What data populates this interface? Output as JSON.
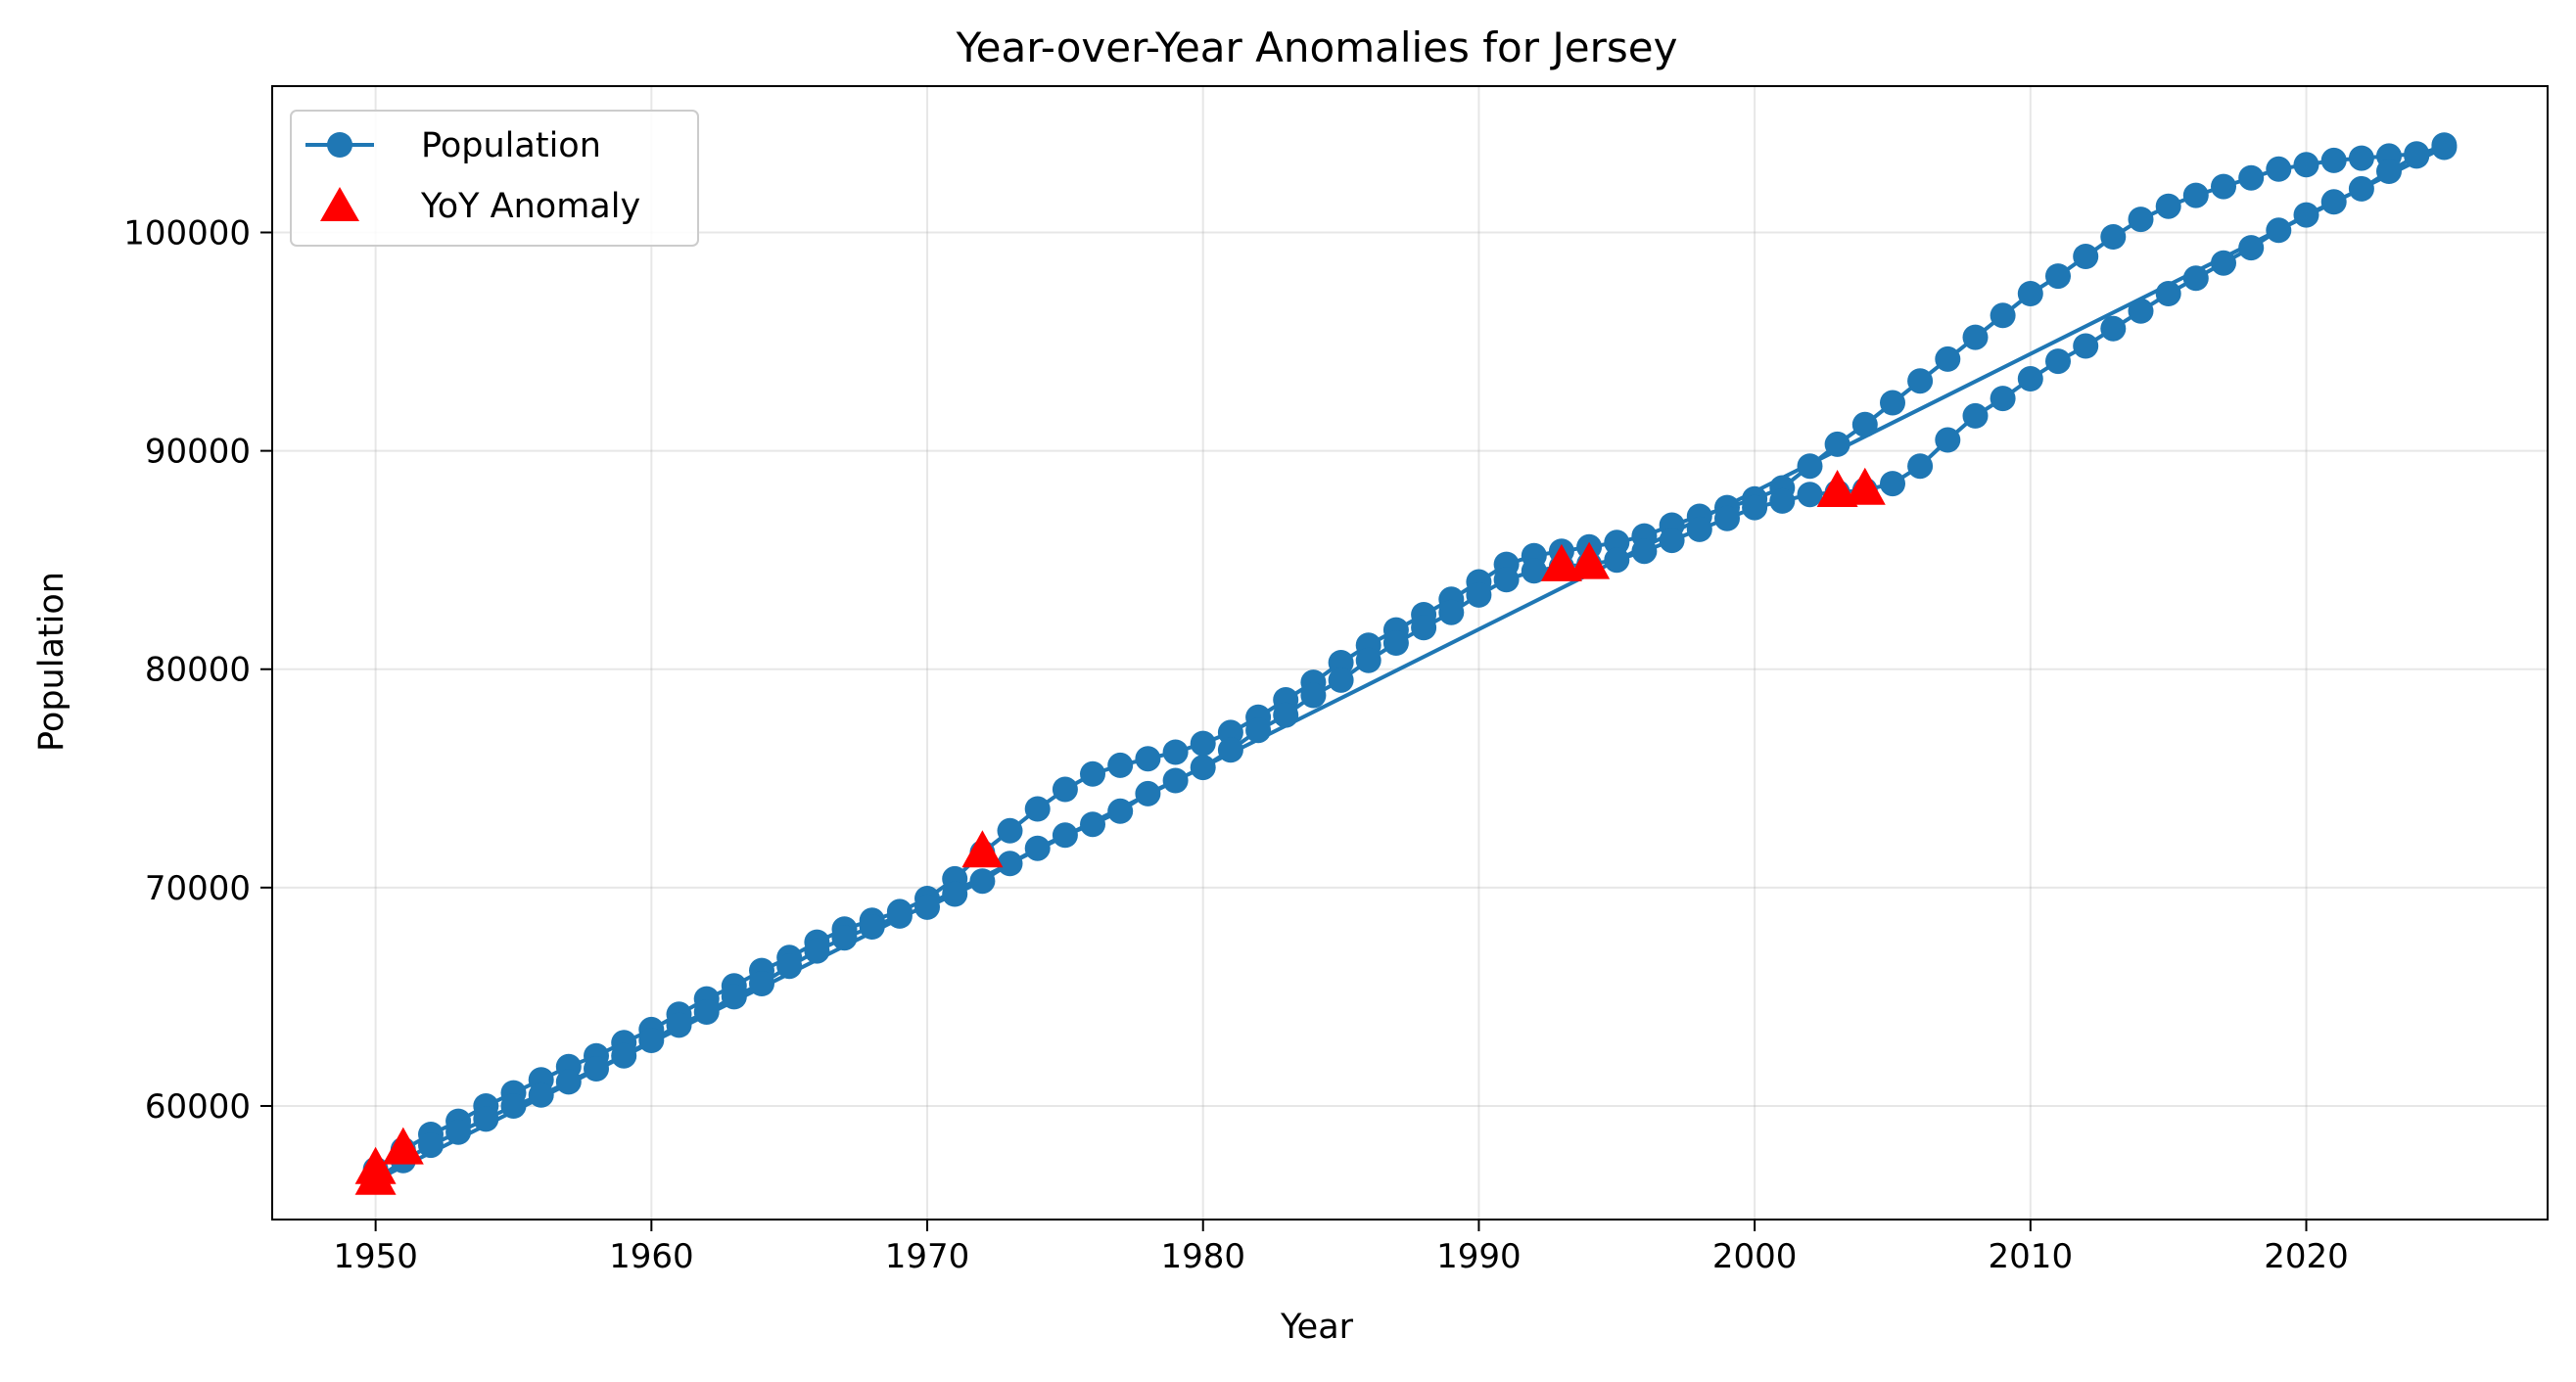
{
  "chart_data": {
    "type": "line",
    "title": "Year-over-Year Anomalies for Jersey",
    "xlabel": "Year",
    "ylabel": "Population",
    "xlim": [
      1946.25,
      2028.75
    ],
    "ylim": [
      54800,
      106700
    ],
    "xticks": [
      1950,
      1960,
      1970,
      1980,
      1990,
      2000,
      2010,
      2020
    ],
    "yticks": [
      60000,
      70000,
      80000,
      90000,
      100000
    ],
    "grid": true,
    "legend_position": "upper-left",
    "colors": {
      "series": "#1f77b4",
      "anomaly": "#ff0000"
    },
    "series": [
      {
        "name": "Population",
        "marker": "circle",
        "x": [
          1950,
          1951,
          1952,
          1953,
          1954,
          1955,
          1956,
          1957,
          1958,
          1959,
          1960,
          1961,
          1962,
          1963,
          1964,
          1965,
          1966,
          1967,
          1968,
          1969,
          1970,
          1971,
          1972,
          1973,
          1974,
          1975,
          1976,
          1977,
          1978,
          1979,
          1980,
          1981,
          1982,
          1983,
          1984,
          1985,
          1986,
          1987,
          1988,
          1989,
          1990,
          1991,
          1992,
          1993,
          1994,
          1995,
          1996,
          1997,
          1998,
          1999,
          2000,
          2001,
          2002,
          2003,
          2004,
          2005,
          2006,
          2007,
          2008,
          2009,
          2010,
          2011,
          2012,
          2013,
          2014,
          2015,
          2016,
          2017,
          2018,
          2019,
          2020,
          2021,
          2022,
          2023,
          2024,
          2025,
          1950,
          1951,
          1952,
          1953,
          1954,
          1955,
          1956,
          1957,
          1958,
          1959,
          1960,
          1961,
          1962,
          1963,
          1964,
          1965,
          1966,
          1967,
          1968,
          1969,
          1970,
          1971,
          1972,
          1973,
          1974,
          1975,
          1976,
          1977,
          1978,
          1979,
          1980,
          1981,
          1982,
          1983,
          1984,
          1985,
          1986,
          1987,
          1988,
          1989,
          1990,
          1991,
          1992,
          1993,
          1994,
          1995,
          1996,
          1997,
          1998,
          1999,
          2000,
          2001,
          2002,
          2003,
          2004,
          2005,
          2006,
          2007,
          2008,
          2009,
          2010,
          2011,
          2012,
          2013,
          2014,
          2015,
          2016,
          2017,
          2018,
          2019,
          2020,
          2021,
          2022,
          2023,
          2024,
          2025
        ],
        "values": [
          57100,
          58000,
          58700,
          59300,
          60000,
          60600,
          61200,
          61800,
          62300,
          62900,
          63500,
          64200,
          64900,
          65500,
          66200,
          66800,
          67500,
          68100,
          68500,
          68900,
          69500,
          70400,
          71600,
          72600,
          73600,
          74500,
          75200,
          75600,
          75900,
          76200,
          76600,
          77100,
          77800,
          78600,
          79400,
          80300,
          81100,
          81800,
          82500,
          83200,
          84000,
          84800,
          85200,
          85400,
          85600,
          85800,
          86100,
          86600,
          87000,
          87400,
          87800,
          88300,
          89300,
          90300,
          91200,
          92200,
          93200,
          94200,
          95200,
          96200,
          97200,
          98000,
          98900,
          99800,
          100600,
          101200,
          101700,
          102100,
          102500,
          102900,
          103100,
          103300,
          103400,
          103500,
          103600,
          103900,
          56600,
          57500,
          58200,
          58800,
          59400,
          60000,
          60500,
          61100,
          61700,
          62300,
          63000,
          63700,
          64300,
          65000,
          65600,
          66400,
          67100,
          67700,
          68200,
          68700,
          69100,
          69700,
          70300,
          71100,
          71800,
          72400,
          72900,
          73500,
          74300,
          74900,
          75500,
          76300,
          77200,
          77900,
          78800,
          79500,
          80400,
          81200,
          81900,
          82600,
          83400,
          84100,
          84500,
          84700,
          84800,
          85000,
          85400,
          85900,
          86400,
          86900,
          87400,
          87700,
          88000,
          88100,
          88200,
          88500,
          89300,
          90500,
          91600,
          92400,
          93300,
          94100,
          94800,
          95600,
          96400,
          97200,
          97900,
          98600,
          99300,
          100100,
          100800,
          101400,
          102000,
          102800,
          103500,
          104000
        ]
      }
    ],
    "anomalies": {
      "name": "YoY Anomaly",
      "marker": "triangle",
      "x": [
        1950,
        1950,
        1951,
        1972,
        1993,
        1994,
        2003,
        2004
      ],
      "values": [
        57100,
        56600,
        58000,
        71600,
        84700,
        84800,
        88100,
        88200
      ]
    }
  }
}
